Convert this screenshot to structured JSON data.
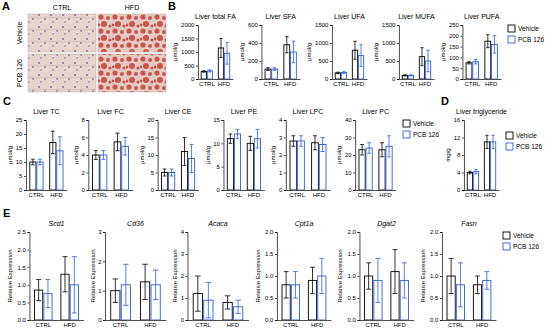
{
  "panel_a": {
    "panel": "A",
    "columns": [
      "CTRL",
      "HFD"
    ],
    "rows": [
      "Vehicle",
      "PCB 126"
    ]
  },
  "chart_data": [
    {
      "panel": "B",
      "type": "bar",
      "title": "Liver total FA",
      "y_label": "μmol/g",
      "categories": [
        "CTRL",
        "HFD"
      ],
      "series": [
        {
          "name": "Vehicle",
          "color": "#000000",
          "values": [
            280,
            1150
          ],
          "errors": [
            30,
            350
          ]
        },
        {
          "name": "PCB 126",
          "color": "#2b5fd9",
          "values": [
            300,
            950
          ],
          "errors": [
            40,
            400
          ]
        }
      ],
      "ylim": [
        0,
        2000
      ],
      "yticks": [
        0,
        500,
        1000,
        1500,
        2000
      ]
    },
    {
      "type": "bar",
      "title": "Liver SFA",
      "y_label": "μmol/g",
      "categories": [
        "CTRL",
        "HFD"
      ],
      "series": [
        {
          "name": "Vehicle",
          "color": "#000000",
          "values": [
            110,
            380
          ],
          "errors": [
            15,
            90
          ]
        },
        {
          "name": "PCB 126",
          "color": "#2b5fd9",
          "values": [
            110,
            300
          ],
          "errors": [
            15,
            120
          ]
        }
      ],
      "ylim": [
        0,
        600
      ],
      "yticks": [
        0,
        200,
        400,
        600
      ]
    },
    {
      "type": "bar",
      "title": "Liver UFA",
      "y_label": "μmol/g",
      "categories": [
        "CTRL",
        "HFD"
      ],
      "series": [
        {
          "name": "Vehicle",
          "color": "#000000",
          "values": [
            170,
            800
          ],
          "errors": [
            20,
            250
          ]
        },
        {
          "name": "PCB 126",
          "color": "#2b5fd9",
          "values": [
            180,
            650
          ],
          "errors": [
            25,
            300
          ]
        }
      ],
      "ylim": [
        0,
        1500
      ],
      "yticks": [
        0,
        500,
        1000,
        1500
      ]
    },
    {
      "type": "bar",
      "title": "Liver MUFA",
      "y_label": "μmol/g",
      "categories": [
        "CTRL",
        "HFD"
      ],
      "series": [
        {
          "name": "Vehicle",
          "color": "#000000",
          "values": [
            100,
            620
          ],
          "errors": [
            15,
            250
          ]
        },
        {
          "name": "PCB 126",
          "color": "#2b5fd9",
          "values": [
            100,
            500
          ],
          "errors": [
            15,
            300
          ]
        }
      ],
      "ylim": [
        0,
        1500
      ],
      "yticks": [
        0,
        500,
        1000,
        1500
      ]
    },
    {
      "type": "bar",
      "title": "Liver PUFA",
      "y_label": "μmol/g",
      "categories": [
        "CTRL",
        "HFD"
      ],
      "series": [
        {
          "name": "Vehicle",
          "color": "#000000",
          "values": [
            75,
            175
          ],
          "errors": [
            5,
            30
          ]
        },
        {
          "name": "PCB 126",
          "color": "#2b5fd9",
          "values": [
            80,
            160
          ],
          "errors": [
            10,
            40
          ]
        }
      ],
      "ylim": [
        0,
        250
      ],
      "yticks": [
        0,
        50,
        100,
        150,
        200,
        250
      ],
      "legend": "right"
    },
    {
      "panel": "C",
      "type": "bar",
      "title": "Liver TC",
      "y_label": "μmol/g",
      "categories": [
        "CTRL",
        "HFD"
      ],
      "series": [
        {
          "name": "Vehicle",
          "color": "#000000",
          "values": [
            10,
            17
          ],
          "errors": [
            1,
            4
          ]
        },
        {
          "name": "PCB 126",
          "color": "#2b5fd9",
          "values": [
            10,
            14
          ],
          "errors": [
            1,
            5
          ]
        }
      ],
      "ylim": [
        0,
        25
      ],
      "yticks": [
        0,
        5,
        10,
        15,
        20,
        25
      ]
    },
    {
      "type": "bar",
      "title": "Liver FC",
      "y_label": "μmol/g",
      "categories": [
        "CTRL",
        "HFD"
      ],
      "series": [
        {
          "name": "Vehicle",
          "color": "#000000",
          "values": [
            4,
            5.5
          ],
          "errors": [
            0.5,
            1
          ]
        },
        {
          "name": "PCB 126",
          "color": "#2b5fd9",
          "values": [
            4,
            5
          ],
          "errors": [
            0.5,
            1
          ]
        }
      ],
      "ylim": [
        0,
        8
      ],
      "yticks": [
        0,
        2,
        4,
        6,
        8
      ]
    },
    {
      "type": "bar",
      "title": "Liver CE",
      "y_label": "μmol/g",
      "categories": [
        "CTRL",
        "HFD"
      ],
      "series": [
        {
          "name": "Vehicle",
          "color": "#000000",
          "values": [
            5,
            11
          ],
          "errors": [
            1,
            4
          ]
        },
        {
          "name": "PCB 126",
          "color": "#2b5fd9",
          "values": [
            5,
            9
          ],
          "errors": [
            1,
            4
          ]
        }
      ],
      "ylim": [
        0,
        20
      ],
      "yticks": [
        0,
        5,
        10,
        15,
        20
      ]
    },
    {
      "type": "bar",
      "title": "Liver PE",
      "y_label": "μmol/g",
      "categories": [
        "CTRL",
        "HFD"
      ],
      "series": [
        {
          "name": "Vehicle",
          "color": "#000000",
          "values": [
            11,
            10
          ],
          "errors": [
            1,
            1.5
          ]
        },
        {
          "name": "PCB 126",
          "color": "#2b5fd9",
          "values": [
            12,
            11
          ],
          "errors": [
            1,
            2
          ]
        }
      ],
      "ylim": [
        0,
        15
      ],
      "yticks": [
        0,
        5,
        10,
        15
      ]
    },
    {
      "type": "bar",
      "title": "Liver LPC",
      "y_label": "μmol/g",
      "categories": [
        "CTRL",
        "HFD"
      ],
      "series": [
        {
          "name": "Vehicle",
          "color": "#000000",
          "values": [
            2.8,
            2.7
          ],
          "errors": [
            0.3,
            0.4
          ]
        },
        {
          "name": "PCB 126",
          "color": "#2b5fd9",
          "values": [
            2.8,
            2.6
          ],
          "errors": [
            0.3,
            0.4
          ]
        }
      ],
      "ylim": [
        0,
        4
      ],
      "yticks": [
        0,
        1,
        2,
        3,
        4
      ]
    },
    {
      "type": "bar",
      "title": "Liver PC",
      "y_label": "μmol/g",
      "categories": [
        "CTRL",
        "HFD"
      ],
      "series": [
        {
          "name": "Vehicle",
          "color": "#000000",
          "values": [
            23,
            23
          ],
          "errors": [
            3,
            4
          ]
        },
        {
          "name": "PCB 126",
          "color": "#2b5fd9",
          "values": [
            24,
            25
          ],
          "errors": [
            3,
            6
          ]
        }
      ],
      "ylim": [
        0,
        40
      ],
      "yticks": [
        0,
        10,
        20,
        30,
        40
      ],
      "legend": "right"
    },
    {
      "panel": "D",
      "type": "bar",
      "title": "Liver triglyceride",
      "y_label": "mg/g",
      "categories": [
        "CTRL",
        "HFD"
      ],
      "series": [
        {
          "name": "Vehicle",
          "color": "#000000",
          "values": [
            4,
            11
          ],
          "errors": [
            0.3,
            1.5
          ]
        },
        {
          "name": "PCB 126",
          "color": "#2b5fd9",
          "values": [
            4.2,
            11
          ],
          "errors": [
            0.5,
            1.5
          ]
        }
      ],
      "ylim": [
        0,
        16
      ],
      "yticks": [
        0,
        4,
        8,
        12,
        16
      ],
      "legend": "right"
    },
    {
      "panel": "E",
      "type": "bar",
      "title": "Scd1",
      "y_label": "Relative Expression",
      "categories": [
        "CTRL",
        "HFD"
      ],
      "series": [
        {
          "name": "Vehicle",
          "color": "#000000",
          "values": [
            0.85,
            1.3
          ],
          "errors": [
            0.3,
            0.5
          ]
        },
        {
          "name": "PCB 126",
          "color": "#2b5fd9",
          "values": [
            0.75,
            1.0
          ],
          "errors": [
            0.4,
            0.8
          ]
        }
      ],
      "ylim": [
        0,
        2.5
      ],
      "yticks": [
        {
          "value": 0,
          "label": "0.0"
        },
        0.5,
        {
          "value": 1,
          "label": "1.0"
        },
        1.5,
        {
          "value": 2,
          "label": "2.0"
        },
        2.5
      ]
    },
    {
      "type": "bar",
      "title": "Cd36",
      "y_label": "Relative Expression",
      "categories": [
        "CTRL",
        "HFD"
      ],
      "series": [
        {
          "name": "Vehicle",
          "color": "#000000",
          "values": [
            1.0,
            1.3
          ],
          "errors": [
            0.4,
            0.6
          ]
        },
        {
          "name": "PCB 126",
          "color": "#2b5fd9",
          "values": [
            1.2,
            1.2
          ],
          "errors": [
            0.7,
            0.5
          ]
        }
      ],
      "ylim": [
        0,
        3
      ],
      "yticks": [
        0,
        1,
        2,
        3
      ]
    },
    {
      "type": "bar",
      "title": "Acaca",
      "y_label": "Relative Expression",
      "categories": [
        "CTRL",
        "HFD"
      ],
      "series": [
        {
          "name": "Vehicle",
          "color": "#000000",
          "values": [
            1.2,
            0.8
          ],
          "errors": [
            0.8,
            0.3
          ]
        },
        {
          "name": "PCB 126",
          "color": "#2b5fd9",
          "values": [
            0.9,
            0.6
          ],
          "errors": [
            0.8,
            0.3
          ]
        }
      ],
      "ylim": [
        0,
        4
      ],
      "yticks": [
        0,
        1,
        2,
        3,
        4
      ]
    },
    {
      "type": "bar",
      "title": "Cpt1a",
      "y_label": "Relative Expression",
      "categories": [
        "CTRL",
        "HFD"
      ],
      "series": [
        {
          "name": "Vehicle",
          "color": "#000000",
          "values": [
            0.8,
            0.9
          ],
          "errors": [
            0.3,
            0.3
          ]
        },
        {
          "name": "PCB 126",
          "color": "#2b5fd9",
          "values": [
            0.8,
            1.0
          ],
          "errors": [
            0.3,
            0.4
          ]
        }
      ],
      "ylim": [
        0,
        2
      ],
      "yticks": [
        {
          "value": 0,
          "label": "0.0"
        },
        0.5,
        {
          "value": 1,
          "label": "1.0"
        },
        1.5,
        {
          "value": 2,
          "label": "2.0"
        }
      ]
    },
    {
      "type": "bar",
      "title": "Dgat2",
      "y_label": "Relative Expression",
      "categories": [
        "CTRL",
        "HFD"
      ],
      "series": [
        {
          "name": "Vehicle",
          "color": "#000000",
          "values": [
            1.0,
            1.1
          ],
          "errors": [
            0.3,
            0.5
          ]
        },
        {
          "name": "PCB 126",
          "color": "#2b5fd9",
          "values": [
            0.9,
            0.9
          ],
          "errors": [
            0.5,
            0.4
          ]
        }
      ],
      "ylim": [
        0,
        2
      ],
      "yticks": [
        {
          "value": 0,
          "label": "0.0"
        },
        0.5,
        {
          "value": 1,
          "label": "1.0"
        },
        1.5,
        {
          "value": 2,
          "label": "2.0"
        }
      ]
    },
    {
      "type": "bar",
      "title": "Fasn",
      "y_label": "Relative Expression",
      "categories": [
        "CTRL",
        "HFD"
      ],
      "series": [
        {
          "name": "Vehicle",
          "color": "#000000",
          "values": [
            1.0,
            0.8
          ],
          "errors": [
            0.4,
            0.2
          ]
        },
        {
          "name": "PCB 126",
          "color": "#2b5fd9",
          "values": [
            0.8,
            0.9
          ],
          "errors": [
            0.5,
            0.2
          ]
        }
      ],
      "ylim": [
        0,
        2
      ],
      "yticks": [
        {
          "value": 0,
          "label": "0.0"
        },
        0.5,
        {
          "value": 1,
          "label": "1.0"
        },
        1.5,
        {
          "value": 2,
          "label": "2.0"
        }
      ],
      "legend": "right"
    }
  ]
}
